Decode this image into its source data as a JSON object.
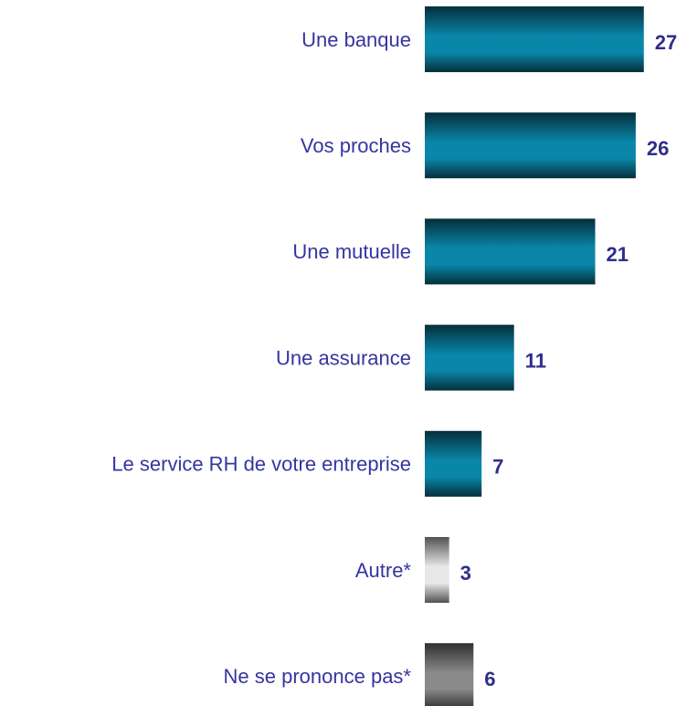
{
  "chart_data": {
    "type": "barh",
    "categories": [
      "Une banque",
      "Vos proches",
      "Une mutuelle",
      "Une assurance",
      "Le service RH de votre entreprise",
      "Autre*",
      "Ne se prononce pas*"
    ],
    "values": [
      27,
      26,
      21,
      11,
      7,
      3,
      6
    ],
    "colors": [
      "#0a86a8",
      "#0a86a8",
      "#0a86a8",
      "#0a86a8",
      "#0a86a8",
      "#e8e8e8",
      "#8a8a8a"
    ]
  }
}
